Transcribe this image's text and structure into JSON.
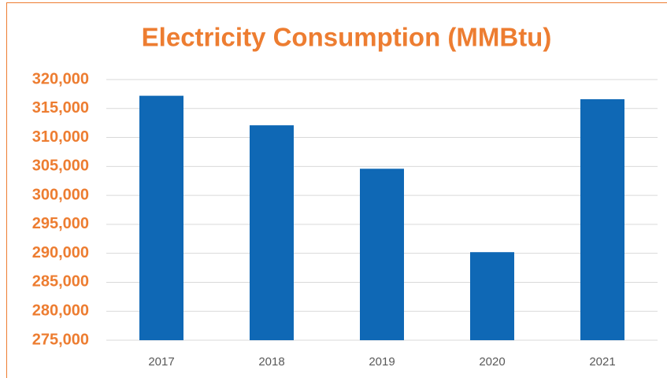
{
  "chart_data": {
    "type": "bar",
    "title": "Electricity Consumption (MMBtu)",
    "categories": [
      "2017",
      "2018",
      "2019",
      "2020",
      "2021"
    ],
    "values": [
      317200,
      312100,
      304600,
      290200,
      316600
    ],
    "color": "#0f68b5",
    "ylim": [
      275000,
      320000
    ],
    "yticks": [
      {
        "value": 275000,
        "label": "275,000"
      },
      {
        "value": 280000,
        "label": "280,000"
      },
      {
        "value": 285000,
        "label": "285,000"
      },
      {
        "value": 290000,
        "label": "290,000"
      },
      {
        "value": 295000,
        "label": "295,000"
      },
      {
        "value": 300000,
        "label": "300,000"
      },
      {
        "value": 305000,
        "label": "305,000"
      },
      {
        "value": 310000,
        "label": "310,000"
      },
      {
        "value": 315000,
        "label": "315,000"
      },
      {
        "value": 320000,
        "label": "320,000"
      }
    ],
    "grid": true
  }
}
